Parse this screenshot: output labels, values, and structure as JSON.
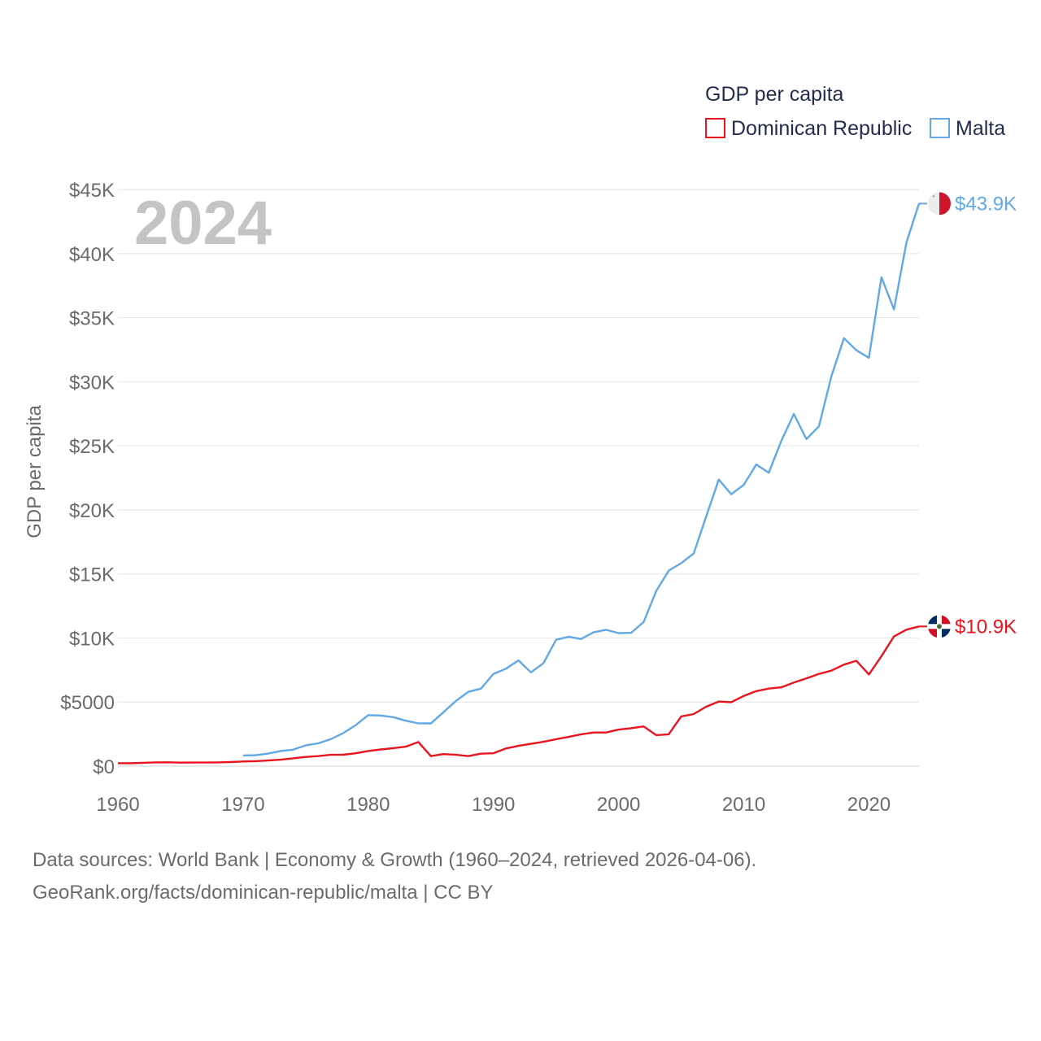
{
  "chart_data": {
    "type": "line",
    "title": "GDP per capita",
    "year_label": "2024",
    "xlabel": "",
    "ylabel": "GDP per capita",
    "xlim": [
      1960,
      2024
    ],
    "ylim": [
      0,
      45000
    ],
    "x_ticks": [
      1960,
      1970,
      1980,
      1990,
      2000,
      2010,
      2020
    ],
    "x_tick_labels": [
      "1960",
      "1970",
      "1980",
      "1990",
      "2000",
      "2010",
      "2020"
    ],
    "y_ticks": [
      0,
      5000,
      10000,
      15000,
      20000,
      25000,
      30000,
      35000,
      40000,
      45000
    ],
    "y_tick_labels": [
      "$0",
      "$5000",
      "$10K",
      "$15K",
      "$20K",
      "$25K",
      "$30K",
      "$35K",
      "$40K",
      "$45K"
    ],
    "grid": true,
    "legend_position": "top-right",
    "series": [
      {
        "name": "Dominican Republic",
        "color": "#e8141e",
        "end_label": "$10.9K",
        "flag": "dominican-republic-flag-icon",
        "points": [
          [
            1960,
            230
          ],
          [
            1961,
            220
          ],
          [
            1962,
            260
          ],
          [
            1963,
            290
          ],
          [
            1964,
            300
          ],
          [
            1965,
            270
          ],
          [
            1966,
            280
          ],
          [
            1967,
            280
          ],
          [
            1968,
            290
          ],
          [
            1969,
            320
          ],
          [
            1970,
            360
          ],
          [
            1971,
            390
          ],
          [
            1972,
            440
          ],
          [
            1973,
            500
          ],
          [
            1974,
            610
          ],
          [
            1975,
            720
          ],
          [
            1976,
            780
          ],
          [
            1977,
            880
          ],
          [
            1978,
            890
          ],
          [
            1979,
            1000
          ],
          [
            1980,
            1180
          ],
          [
            1981,
            1300
          ],
          [
            1982,
            1400
          ],
          [
            1983,
            1520
          ],
          [
            1984,
            1880
          ],
          [
            1985,
            780
          ],
          [
            1986,
            940
          ],
          [
            1987,
            880
          ],
          [
            1988,
            780
          ],
          [
            1989,
            970
          ],
          [
            1990,
            1000
          ],
          [
            1991,
            1380
          ],
          [
            1992,
            1580
          ],
          [
            1993,
            1740
          ],
          [
            1994,
            1900
          ],
          [
            1995,
            2100
          ],
          [
            1996,
            2280
          ],
          [
            1997,
            2480
          ],
          [
            1998,
            2620
          ],
          [
            1999,
            2620
          ],
          [
            2000,
            2850
          ],
          [
            2001,
            2960
          ],
          [
            2002,
            3100
          ],
          [
            2003,
            2420
          ],
          [
            2004,
            2480
          ],
          [
            2005,
            3880
          ],
          [
            2006,
            4060
          ],
          [
            2007,
            4640
          ],
          [
            2008,
            5040
          ],
          [
            2009,
            4990
          ],
          [
            2010,
            5480
          ],
          [
            2011,
            5850
          ],
          [
            2012,
            6050
          ],
          [
            2013,
            6150
          ],
          [
            2014,
            6520
          ],
          [
            2015,
            6850
          ],
          [
            2016,
            7200
          ],
          [
            2017,
            7450
          ],
          [
            2018,
            7920
          ],
          [
            2019,
            8220
          ],
          [
            2020,
            7150
          ],
          [
            2021,
            8580
          ],
          [
            2022,
            10120
          ],
          [
            2023,
            10650
          ],
          [
            2024,
            10900
          ]
        ]
      },
      {
        "name": "Malta",
        "color": "#62a8e5",
        "end_label": "$43.9K",
        "flag": "malta-flag-icon",
        "points": [
          [
            1970,
            830
          ],
          [
            1971,
            850
          ],
          [
            1972,
            980
          ],
          [
            1973,
            1180
          ],
          [
            1974,
            1280
          ],
          [
            1975,
            1620
          ],
          [
            1976,
            1780
          ],
          [
            1977,
            2100
          ],
          [
            1978,
            2580
          ],
          [
            1979,
            3200
          ],
          [
            1980,
            3980
          ],
          [
            1981,
            3950
          ],
          [
            1982,
            3820
          ],
          [
            1983,
            3540
          ],
          [
            1984,
            3340
          ],
          [
            1985,
            3330
          ],
          [
            1986,
            4200
          ],
          [
            1987,
            5080
          ],
          [
            1988,
            5800
          ],
          [
            1989,
            6040
          ],
          [
            1990,
            7200
          ],
          [
            1991,
            7600
          ],
          [
            1992,
            8250
          ],
          [
            1993,
            7320
          ],
          [
            1994,
            8040
          ],
          [
            1995,
            9860
          ],
          [
            1996,
            10100
          ],
          [
            1997,
            9920
          ],
          [
            1998,
            10450
          ],
          [
            1999,
            10640
          ],
          [
            2000,
            10380
          ],
          [
            2001,
            10400
          ],
          [
            2002,
            11240
          ],
          [
            2003,
            13660
          ],
          [
            2004,
            15250
          ],
          [
            2005,
            15840
          ],
          [
            2006,
            16600
          ],
          [
            2007,
            19500
          ],
          [
            2008,
            22360
          ],
          [
            2009,
            21220
          ],
          [
            2010,
            21950
          ],
          [
            2011,
            23540
          ],
          [
            2012,
            22900
          ],
          [
            2013,
            25380
          ],
          [
            2014,
            27480
          ],
          [
            2015,
            25520
          ],
          [
            2016,
            26510
          ],
          [
            2017,
            30430
          ],
          [
            2018,
            33400
          ],
          [
            2019,
            32450
          ],
          [
            2020,
            31860
          ],
          [
            2021,
            38150
          ],
          [
            2022,
            35640
          ],
          [
            2023,
            40880
          ],
          [
            2024,
            43900
          ]
        ]
      }
    ]
  },
  "source": {
    "line1": "Data sources: World Bank | Economy & Growth (1960–2024, retrieved 2026-04-06).",
    "line2": "GeoRank.org/facts/dominican-republic/malta | CC BY"
  }
}
